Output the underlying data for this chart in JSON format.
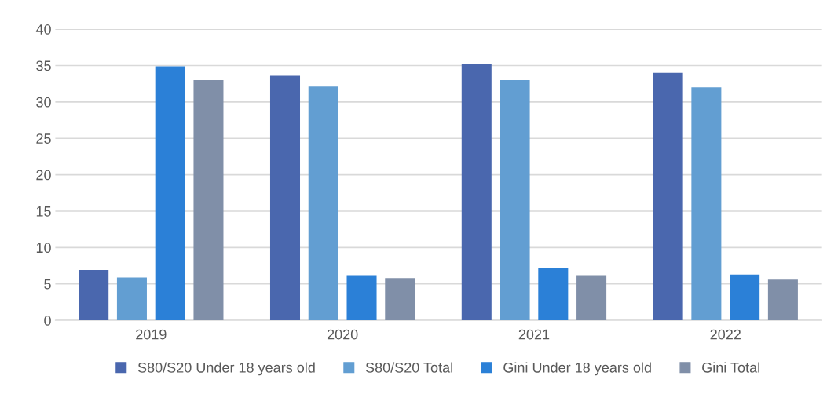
{
  "chart_data": {
    "type": "bar",
    "categories": [
      "2019",
      "2020",
      "2021",
      "2022"
    ],
    "series": [
      {
        "name": "S80/S20 Under 18 years old",
        "color": "#4a67ae",
        "values": [
          6.9,
          33.6,
          35.2,
          34.0
        ]
      },
      {
        "name": "S80/S20 Total",
        "color": "#629ed2",
        "values": [
          5.9,
          32.1,
          33.0,
          32.0
        ]
      },
      {
        "name": "Gini Under 18 years old",
        "color": "#2b80d7",
        "values": [
          34.9,
          6.2,
          7.2,
          6.3
        ]
      },
      {
        "name": "Gini Total",
        "color": "#808fa8",
        "values": [
          33.0,
          5.8,
          6.2,
          5.6
        ]
      }
    ],
    "ylim": [
      0,
      40
    ],
    "yticks": [
      0,
      5,
      10,
      15,
      20,
      25,
      30,
      35,
      40
    ],
    "grid": "y",
    "legend": "bottom"
  }
}
